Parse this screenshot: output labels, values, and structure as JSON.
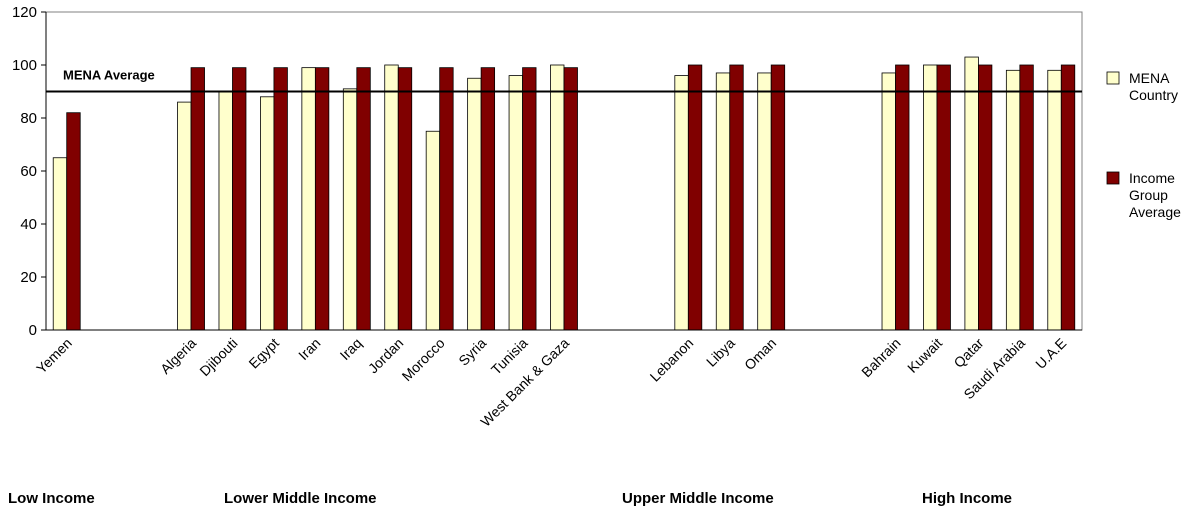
{
  "chart_data": {
    "type": "bar",
    "categories": [
      "Yemen",
      "Algeria",
      "Djibouti",
      "Egypt",
      "Iran",
      "Iraq",
      "Jordan",
      "Morocco",
      "Syria",
      "Tunisia",
      "West Bank & Gaza",
      "Lebanon",
      "Libya",
      "Oman",
      "Bahrain",
      "Kuwait",
      "Qatar",
      "Saudi Arabia",
      "U.A.E"
    ],
    "series": [
      {
        "name": "MENA Country",
        "color": "#ffffcc",
        "values": [
          65,
          86,
          90,
          88,
          99,
          91,
          100,
          75,
          95,
          96,
          100,
          96,
          97,
          97,
          97,
          100,
          103,
          98,
          98
        ]
      },
      {
        "name": "Income Group Average",
        "color": "#800000",
        "values": [
          82,
          99,
          99,
          99,
          99,
          99,
          99,
          99,
          99,
          99,
          99,
          100,
          100,
          100,
          100,
          100,
          100,
          100,
          100
        ]
      }
    ],
    "groups": [
      {
        "label": "Low Income",
        "categories": [
          "Yemen"
        ]
      },
      {
        "label": "Lower Middle Income",
        "categories": [
          "Algeria",
          "Djibouti",
          "Egypt",
          "Iran",
          "Iraq",
          "Jordan",
          "Morocco",
          "Syria",
          "Tunisia",
          "West Bank & Gaza"
        ]
      },
      {
        "label": "Upper Middle Income",
        "categories": [
          "Lebanon",
          "Libya",
          "Oman"
        ]
      },
      {
        "label": "High Income",
        "categories": [
          "Bahrain",
          "Kuwait",
          "Qatar",
          "Saudi Arabia",
          "U.A.E"
        ]
      }
    ],
    "reference_line": {
      "label": "MENA Average",
      "value": 90
    },
    "ylim": [
      0,
      120
    ],
    "yticks": [
      0,
      20,
      40,
      60,
      80,
      100,
      120
    ],
    "grid": false,
    "legend_position": "right",
    "title": "",
    "xlabel": "",
    "ylabel": ""
  }
}
